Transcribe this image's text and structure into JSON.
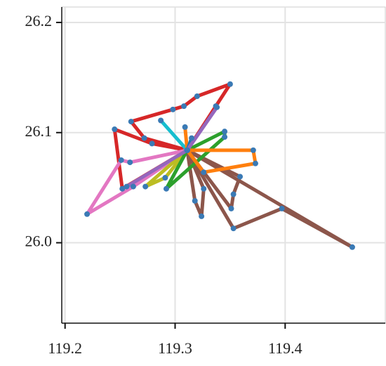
{
  "chart_data": {
    "type": "line",
    "xlim": [
      119.197,
      119.491
    ],
    "ylim": [
      25.927,
      26.214
    ],
    "xticks": [
      119.2,
      119.3,
      119.4
    ],
    "yticks": [
      {
        "value": 26.0,
        "label": "26.0"
      },
      {
        "value": 26.1,
        "label": "26.1"
      },
      {
        "value": 26.2,
        "label": "26.2"
      }
    ],
    "grid": true,
    "marker_color": "#3a7ab5",
    "series": [
      {
        "color": "#d62728",
        "x": [
          119.311,
          119.337,
          119.35,
          119.32,
          119.308,
          119.298,
          119.26,
          119.272,
          119.311
        ],
        "values": [
          26.084,
          26.124,
          26.144,
          26.133,
          26.124,
          26.121,
          26.11,
          26.095,
          26.084
        ]
      },
      {
        "color": "#d62728",
        "x": [
          119.311,
          119.279,
          119.245,
          119.252,
          119.311
        ],
        "values": [
          26.084,
          26.09,
          26.103,
          26.049,
          26.084
        ]
      },
      {
        "color": "#8c564b",
        "x": [
          119.311,
          119.353,
          119.397,
          119.461,
          119.311
        ],
        "values": [
          26.084,
          26.013,
          26.031,
          25.996,
          26.084
        ]
      },
      {
        "color": "#8c564b",
        "x": [
          119.311,
          119.326,
          119.324,
          119.318,
          119.311
        ],
        "values": [
          26.084,
          26.049,
          26.024,
          26.038,
          26.084
        ]
      },
      {
        "color": "#8c564b",
        "x": [
          119.311,
          119.359,
          119.353,
          119.351,
          119.311
        ],
        "values": [
          26.084,
          26.06,
          26.044,
          26.031,
          26.084
        ]
      },
      {
        "color": "#e377c2",
        "x": [
          119.311,
          119.259,
          119.251,
          119.22,
          119.262,
          119.311
        ],
        "values": [
          26.084,
          26.073,
          26.075,
          26.026,
          26.051,
          26.084
        ]
      },
      {
        "color": "#bcbd22",
        "x": [
          119.311,
          119.273,
          119.291,
          119.311
        ],
        "values": [
          26.084,
          26.051,
          26.059,
          26.084
        ]
      },
      {
        "color": "#2ca02c",
        "x": [
          119.311,
          119.345,
          119.345,
          119.292,
          119.311
        ],
        "values": [
          26.084,
          26.101,
          26.096,
          26.049,
          26.084
        ]
      },
      {
        "color": "#17becf",
        "x": [
          119.311,
          119.287,
          119.311
        ],
        "values": [
          26.084,
          26.111,
          26.084
        ]
      },
      {
        "color": "#ff7f0e",
        "x": [
          119.311,
          119.309,
          119.311,
          119.371,
          119.373,
          119.326,
          119.311
        ],
        "values": [
          26.084,
          26.105,
          26.084,
          26.084,
          26.072,
          26.064,
          26.084
        ]
      },
      {
        "color": "#1f77b4",
        "x": [
          119.311,
          119.315,
          119.311
        ],
        "values": [
          26.084,
          26.095,
          26.084
        ]
      },
      {
        "color": "#9467bd",
        "x": [
          119.311,
          119.338,
          119.311,
          119.256
        ],
        "values": [
          26.084,
          26.123,
          26.084,
          26.051
        ]
      }
    ]
  }
}
